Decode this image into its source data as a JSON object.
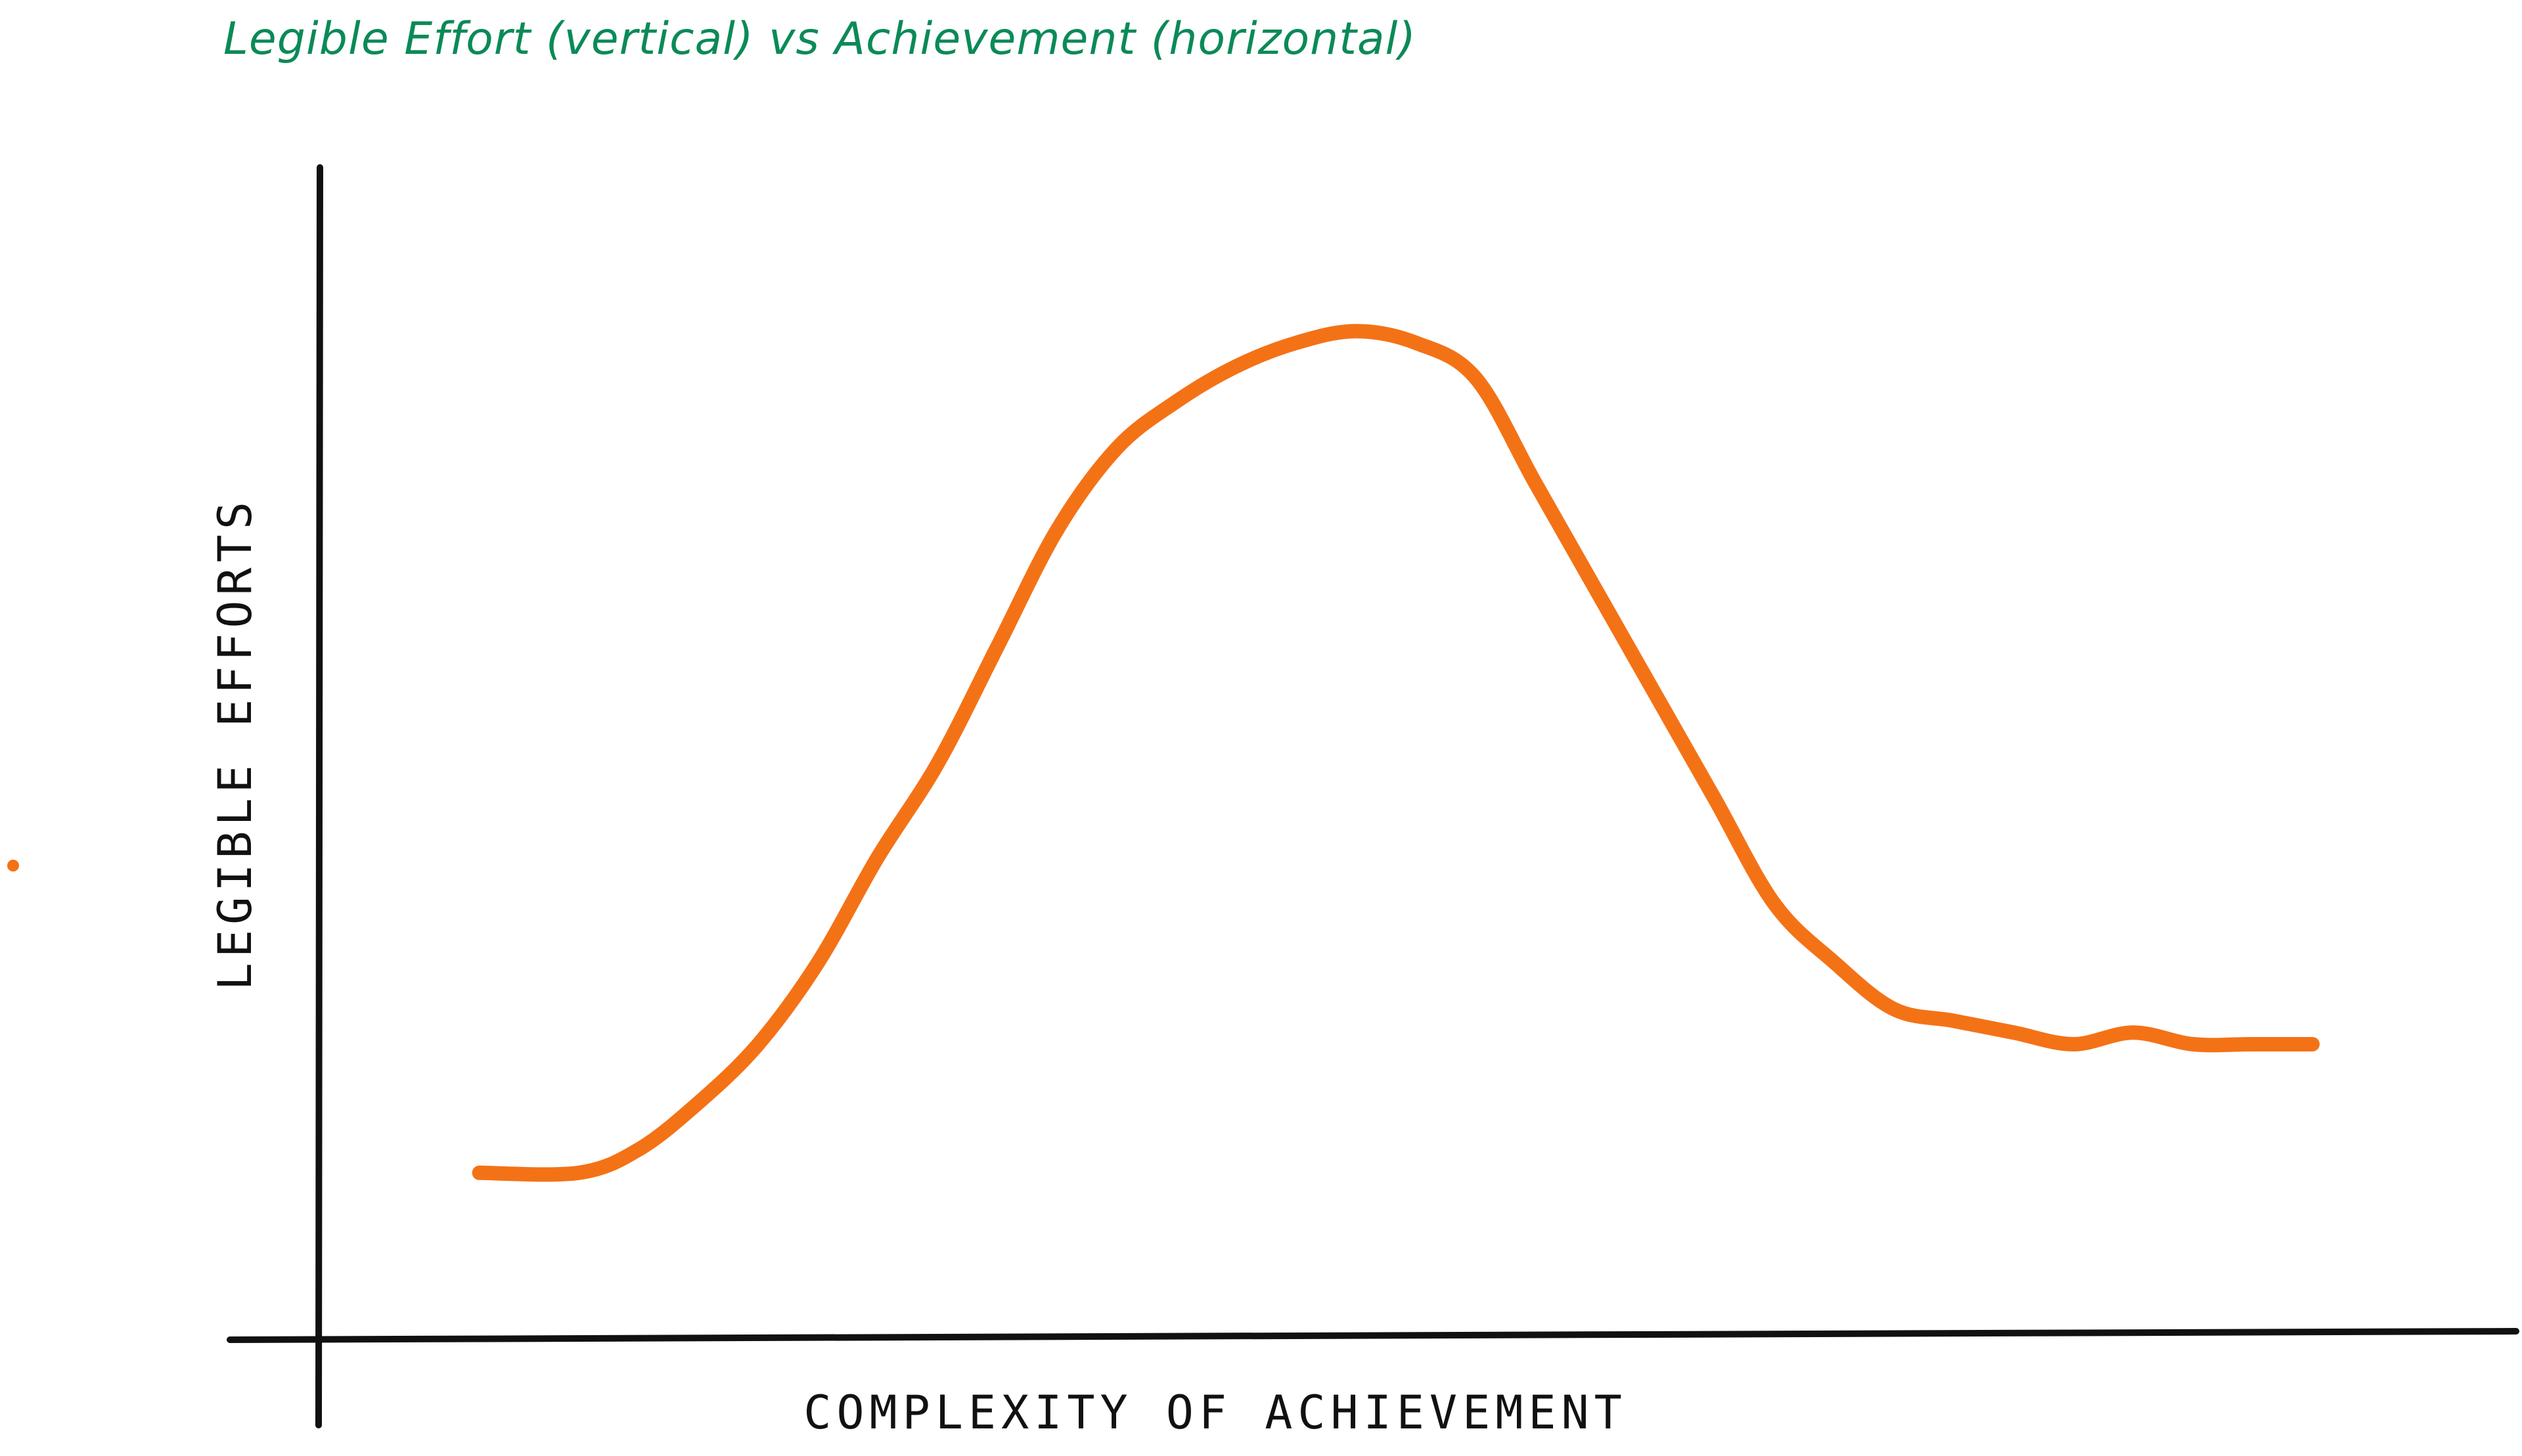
{
  "colors": {
    "title": "#0b8a57",
    "axis": "#111111",
    "curve": "#f47216",
    "label": "#111111"
  },
  "chart_data": {
    "type": "line",
    "title": "Legible Effort (vertical) vs Achievement (horizontal)",
    "xlabel": "COMPLEXITY OF ACHIEVEMENT",
    "ylabel": "LEGIBLE EFFORTS",
    "xlim": [
      0,
      100
    ],
    "ylim": [
      0,
      100
    ],
    "grid": false,
    "legend": "none",
    "series": [
      {
        "x": [
          8,
          13,
          16,
          19,
          22,
          25,
          28,
          31,
          34,
          37,
          40,
          43,
          46,
          49,
          52,
          55,
          58,
          61,
          64,
          67,
          70,
          73,
          76,
          79,
          82,
          85,
          88,
          91,
          94,
          97,
          100
        ],
        "values": [
          14,
          14,
          16,
          20,
          25,
          32,
          41,
          49,
          59,
          69,
          76,
          80,
          83,
          85,
          86,
          85,
          82,
          73,
          64,
          55,
          46,
          37,
          32,
          28,
          27,
          26,
          25,
          26,
          25,
          25,
          25
        ]
      }
    ]
  }
}
